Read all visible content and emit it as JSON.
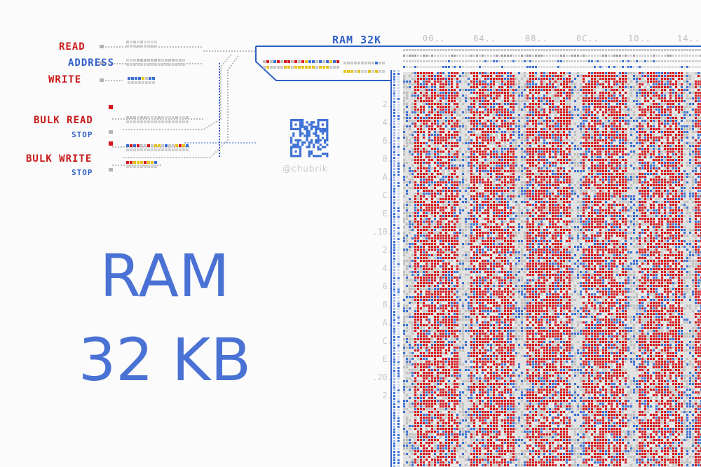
{
  "caption": {
    "line1": "RAM",
    "line2": "32 KB"
  },
  "controls": {
    "read": "READ",
    "address": "ADDRESS",
    "write": "WRITE",
    "bulk_read": "BULK READ",
    "bulk_read_stop": "STOP",
    "bulk_write": "BULK WRITE",
    "bulk_write_stop": "STOP"
  },
  "ram": {
    "title": "RAM 32K",
    "columns": [
      "00..",
      "04..",
      "08..",
      "0C..",
      "10..",
      "14.."
    ],
    "rows": [
      "2.",
      "4.",
      "6.",
      "8.",
      "A.",
      "C.",
      "E.",
      ".10.",
      "2.",
      "4.",
      "6.",
      "8.",
      "A.",
      "C.",
      "E.",
      ".20.",
      "2."
    ]
  },
  "watermark": "@chubrik",
  "colors": {
    "bit_on": "#d7141a",
    "bit_off": "#c9c9c9",
    "bit_blue": "#3b6fd4",
    "frame": "#2f5fc8",
    "caption": "#4a72d4",
    "label_red": "#c81a1a"
  }
}
